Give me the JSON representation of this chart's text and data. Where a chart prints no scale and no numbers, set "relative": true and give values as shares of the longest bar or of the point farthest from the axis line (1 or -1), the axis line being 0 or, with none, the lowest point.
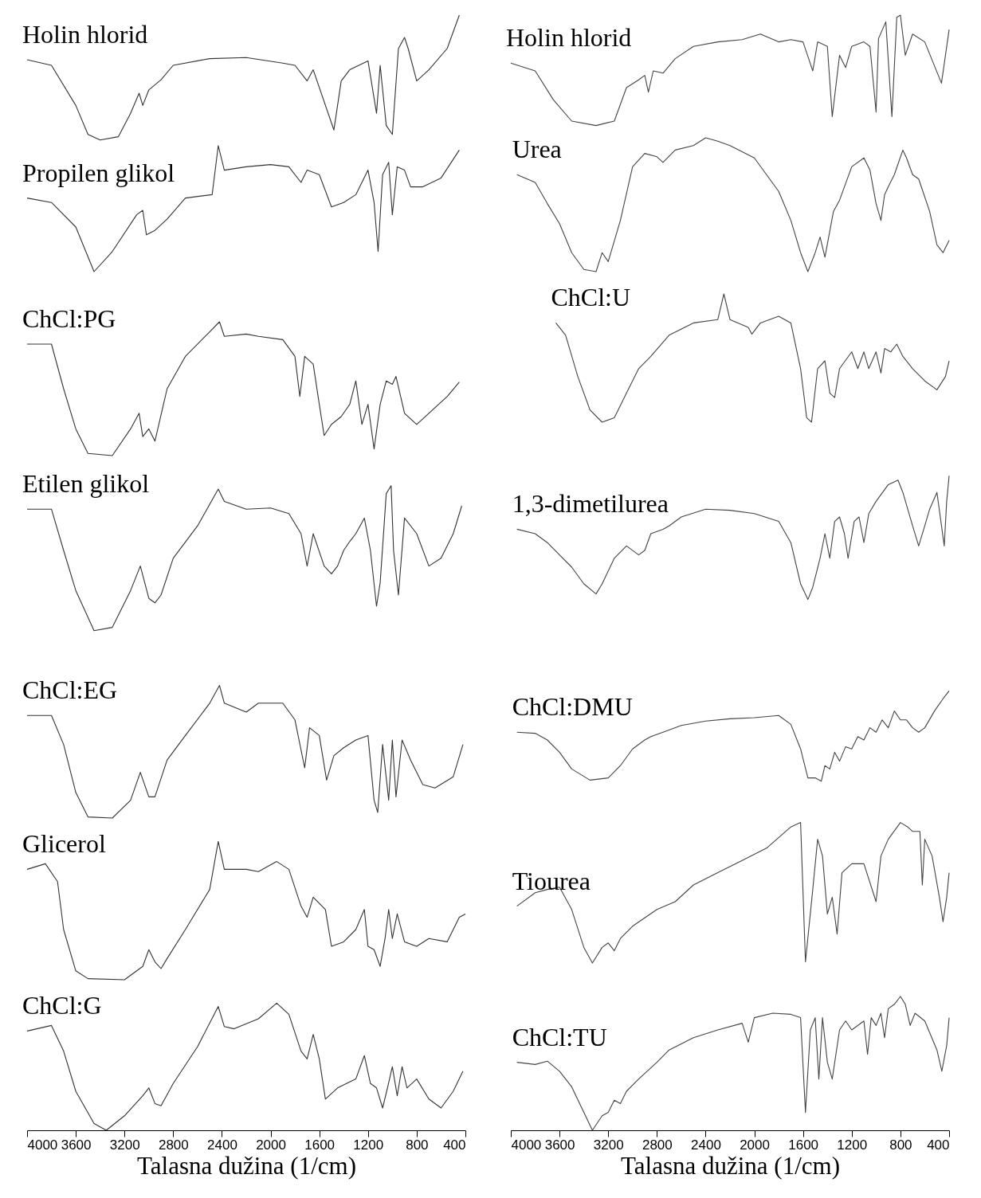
{
  "chart_data": [
    {
      "type": "line",
      "relative": true,
      "xlabel": "Talasna dužina (1/cm)",
      "xlim": [
        4000,
        400
      ],
      "xticks": [
        4000,
        3600,
        3200,
        2800,
        2400,
        2000,
        1600,
        1200,
        800,
        400
      ],
      "tick_labels": "x",
      "series": [
        {
          "name": "Holin hlorid",
          "color": "#333333",
          "x": [
            4000,
            3800,
            3600,
            3500,
            3400,
            3250,
            3150,
            3080,
            3050,
            3000,
            2900,
            2800,
            2500,
            2200,
            1900,
            1800,
            1700,
            1650,
            1480,
            1420,
            1350,
            1200,
            1130,
            1100,
            1050,
            1000,
            950,
            900,
            870,
            800,
            700,
            550,
            450
          ],
          "values": [
            0.96,
            0.955,
            0.919,
            0.893,
            0.888,
            0.891,
            0.912,
            0.93,
            0.919,
            0.933,
            0.942,
            0.955,
            0.961,
            0.962,
            0.957,
            0.955,
            0.941,
            0.951,
            0.897,
            0.941,
            0.951,
            0.959,
            0.912,
            0.955,
            0.901,
            0.893,
            0.97,
            0.98,
            0.97,
            0.941,
            0.951,
            0.97,
            1.0
          ]
        },
        {
          "name": "Propilen glikol",
          "color": "#333333",
          "x": [
            4000,
            3800,
            3600,
            3450,
            3300,
            3100,
            3050,
            3020,
            2950,
            2850,
            2700,
            2480,
            2430,
            2380,
            2200,
            2000,
            1850,
            1750,
            1700,
            1600,
            1500,
            1400,
            1300,
            1200,
            1150,
            1117,
            1080,
            1030,
            1000,
            960,
            900,
            850,
            750,
            600,
            450
          ],
          "values": [
            0.836,
            0.832,
            0.81,
            0.77,
            0.788,
            0.821,
            0.825,
            0.803,
            0.807,
            0.817,
            0.836,
            0.839,
            0.883,
            0.861,
            0.864,
            0.866,
            0.864,
            0.85,
            0.861,
            0.857,
            0.828,
            0.832,
            0.839,
            0.861,
            0.832,
            0.788,
            0.857,
            0.868,
            0.821,
            0.864,
            0.861,
            0.846,
            0.846,
            0.854,
            0.879
          ]
        },
        {
          "name": "ChCl:PG",
          "color": "#333333",
          "x": [
            4000,
            3800,
            3700,
            3600,
            3500,
            3300,
            3150,
            3080,
            3050,
            3000,
            2950,
            2850,
            2700,
            2500,
            2420,
            2380,
            2200,
            2100,
            1900,
            1800,
            1760,
            1720,
            1650,
            1600,
            1560,
            1500,
            1420,
            1350,
            1300,
            1250,
            1200,
            1150,
            1100,
            1050,
            1000,
            970,
            900,
            800,
            700,
            550,
            450
          ],
          "values": [
            0.705,
            0.705,
            0.665,
            0.629,
            0.607,
            0.605,
            0.629,
            0.643,
            0.622,
            0.629,
            0.618,
            0.665,
            0.694,
            0.716,
            0.725,
            0.712,
            0.714,
            0.712,
            0.709,
            0.694,
            0.658,
            0.694,
            0.687,
            0.651,
            0.623,
            0.633,
            0.64,
            0.651,
            0.672,
            0.633,
            0.651,
            0.611,
            0.651,
            0.672,
            0.669,
            0.676,
            0.643,
            0.633,
            0.643,
            0.658,
            0.671
          ]
        },
        {
          "name": "Etilen glikol",
          "color": "#333333",
          "x": [
            4000,
            3800,
            3700,
            3600,
            3450,
            3300,
            3150,
            3070,
            3000,
            2950,
            2900,
            2800,
            2600,
            2430,
            2380,
            2200,
            2000,
            1850,
            1750,
            1700,
            1650,
            1560,
            1500,
            1450,
            1400,
            1350,
            1300,
            1230,
            1180,
            1130,
            1100,
            1050,
            1010,
            990,
            950,
            900,
            800,
            700,
            600,
            500,
            430
          ],
          "values": [
            0.557,
            0.557,
            0.52,
            0.484,
            0.448,
            0.451,
            0.484,
            0.506,
            0.477,
            0.473,
            0.48,
            0.513,
            0.542,
            0.575,
            0.564,
            0.557,
            0.558,
            0.553,
            0.535,
            0.506,
            0.535,
            0.506,
            0.499,
            0.506,
            0.52,
            0.528,
            0.535,
            0.549,
            0.52,
            0.47,
            0.491,
            0.571,
            0.578,
            0.52,
            0.48,
            0.549,
            0.535,
            0.506,
            0.513,
            0.535,
            0.56
          ]
        },
        {
          "name": "ChCl:EG",
          "color": "#333333",
          "x": [
            4000,
            3800,
            3700,
            3600,
            3500,
            3300,
            3150,
            3070,
            3000,
            2950,
            2850,
            2700,
            2500,
            2420,
            2380,
            2200,
            2100,
            1900,
            1800,
            1720,
            1680,
            1600,
            1540,
            1480,
            1400,
            1300,
            1200,
            1150,
            1120,
            1080,
            1030,
            1000,
            970,
            920,
            850,
            750,
            650,
            500,
            420
          ],
          "values": [
            0.372,
            0.372,
            0.346,
            0.303,
            0.281,
            0.28,
            0.296,
            0.321,
            0.299,
            0.299,
            0.332,
            0.354,
            0.383,
            0.399,
            0.383,
            0.375,
            0.383,
            0.383,
            0.368,
            0.325,
            0.361,
            0.354,
            0.314,
            0.336,
            0.343,
            0.35,
            0.354,
            0.296,
            0.285,
            0.346,
            0.296,
            0.35,
            0.299,
            0.35,
            0.332,
            0.31,
            0.307,
            0.317,
            0.346
          ]
        },
        {
          "name": "Glicerol",
          "color": "#333333",
          "x": [
            4000,
            3850,
            3750,
            3700,
            3600,
            3500,
            3200,
            3050,
            3000,
            2950,
            2900,
            2850,
            2700,
            2500,
            2430,
            2380,
            2200,
            2100,
            1950,
            1850,
            1750,
            1700,
            1650,
            1550,
            1500,
            1400,
            1300,
            1230,
            1200,
            1150,
            1100,
            1060,
            1030,
            1000,
            960,
            900,
            800,
            700,
            550,
            450,
            400
          ],
          "values": [
            0.234,
            0.239,
            0.223,
            0.18,
            0.143,
            0.136,
            0.135,
            0.147,
            0.162,
            0.151,
            0.145,
            0.154,
            0.18,
            0.216,
            0.259,
            0.234,
            0.234,
            0.232,
            0.241,
            0.234,
            0.201,
            0.191,
            0.209,
            0.198,
            0.165,
            0.169,
            0.18,
            0.198,
            0.165,
            0.162,
            0.147,
            0.172,
            0.198,
            0.172,
            0.194,
            0.169,
            0.165,
            0.172,
            0.169,
            0.191,
            0.194
          ]
        },
        {
          "name": "ChCl:G",
          "color": "#333333",
          "x": [
            4000,
            3800,
            3700,
            3600,
            3450,
            3350,
            3200,
            3050,
            3000,
            2950,
            2900,
            2800,
            2600,
            2430,
            2380,
            2300,
            2100,
            1950,
            1850,
            1750,
            1700,
            1650,
            1600,
            1550,
            1450,
            1300,
            1230,
            1180,
            1130,
            1080,
            1040,
            1000,
            960,
            920,
            880,
            800,
            700,
            600,
            500,
            420
          ],
          "values": [
            0.089,
            0.094,
            0.071,
            0.035,
            0.006,
            0.0,
            0.013,
            0.031,
            0.038,
            0.024,
            0.022,
            0.042,
            0.075,
            0.111,
            0.093,
            0.091,
            0.1,
            0.114,
            0.104,
            0.071,
            0.064,
            0.086,
            0.064,
            0.028,
            0.038,
            0.046,
            0.067,
            0.042,
            0.038,
            0.02,
            0.038,
            0.057,
            0.031,
            0.057,
            0.038,
            0.046,
            0.028,
            0.02,
            0.035,
            0.053
          ]
        }
      ]
    },
    {
      "type": "line",
      "relative": true,
      "xlabel": "Talasna dužina (1/cm)",
      "xlim": [
        4000,
        400
      ],
      "xticks": [
        4000,
        3600,
        3200,
        2800,
        2400,
        2000,
        1600,
        1200,
        800,
        400
      ],
      "tick_labels": "x",
      "series": [
        {
          "name": "Holin hlorid",
          "color": "#444444",
          "x": [
            4000,
            3800,
            3650,
            3500,
            3300,
            3150,
            3050,
            2950,
            2900,
            2870,
            2830,
            2750,
            2650,
            2500,
            2300,
            2100,
            1950,
            1800,
            1700,
            1600,
            1520,
            1480,
            1400,
            1360,
            1300,
            1250,
            1200,
            1100,
            1050,
            1000,
            980,
            920,
            870,
            830,
            800,
            760,
            700,
            600,
            463,
            430,
            400
          ],
          "values": [
            0.957,
            0.95,
            0.924,
            0.905,
            0.901,
            0.905,
            0.935,
            0.942,
            0.946,
            0.931,
            0.95,
            0.948,
            0.961,
            0.972,
            0.976,
            0.978,
            0.983,
            0.976,
            0.978,
            0.976,
            0.95,
            0.976,
            0.972,
            0.909,
            0.964,
            0.953,
            0.972,
            0.976,
            0.972,
            0.913,
            0.979,
            0.994,
            0.909,
            0.998,
            1.0,
            0.964,
            0.983,
            0.976,
            0.939,
            0.964,
            0.987
          ]
        },
        {
          "name": "Urea",
          "color": "#444444",
          "x": [
            3950,
            3800,
            3700,
            3600,
            3500,
            3400,
            3300,
            3250,
            3200,
            3100,
            3000,
            2900,
            2800,
            2750,
            2650,
            2500,
            2400,
            2300,
            2200,
            2000,
            1800,
            1700,
            1620,
            1560,
            1500,
            1460,
            1420,
            1350,
            1300,
            1200,
            1100,
            1050,
            1000,
            960,
            930,
            900,
            850,
            780,
            750,
            700,
            650,
            560,
            500,
            450,
            400
          ],
          "values": [
            0.857,
            0.85,
            0.831,
            0.813,
            0.787,
            0.772,
            0.77,
            0.787,
            0.779,
            0.816,
            0.864,
            0.876,
            0.873,
            0.868,
            0.879,
            0.883,
            0.89,
            0.887,
            0.883,
            0.872,
            0.842,
            0.816,
            0.787,
            0.77,
            0.787,
            0.801,
            0.783,
            0.824,
            0.834,
            0.864,
            0.872,
            0.861,
            0.831,
            0.816,
            0.839,
            0.846,
            0.857,
            0.879,
            0.872,
            0.857,
            0.853,
            0.824,
            0.794,
            0.787,
            0.798
          ]
        },
        {
          "name": "ChCl:U",
          "color": "#444444",
          "x": [
            3630,
            3550,
            3450,
            3350,
            3250,
            3150,
            3050,
            2950,
            2850,
            2700,
            2500,
            2300,
            2250,
            2200,
            2050,
            2020,
            1950,
            1800,
            1700,
            1620,
            1570,
            1530,
            1480,
            1420,
            1380,
            1340,
            1300,
            1200,
            1150,
            1100,
            1060,
            1000,
            960,
            930,
            880,
            830,
            780,
            700,
            600,
            500,
            430,
            400
          ],
          "values": [
            0.724,
            0.713,
            0.676,
            0.646,
            0.635,
            0.639,
            0.661,
            0.683,
            0.694,
            0.713,
            0.724,
            0.727,
            0.75,
            0.727,
            0.72,
            0.714,
            0.724,
            0.73,
            0.724,
            0.683,
            0.639,
            0.635,
            0.683,
            0.69,
            0.661,
            0.657,
            0.683,
            0.698,
            0.683,
            0.698,
            0.683,
            0.698,
            0.679,
            0.701,
            0.698,
            0.705,
            0.694,
            0.683,
            0.672,
            0.664,
            0.676,
            0.69
          ]
        },
        {
          "name": "1,3-dimetilurea",
          "color": "#444444",
          "x": [
            3950,
            3800,
            3700,
            3600,
            3500,
            3400,
            3300,
            3250,
            3150,
            3050,
            2950,
            2900,
            2850,
            2750,
            2700,
            2600,
            2400,
            2200,
            2000,
            1800,
            1700,
            1620,
            1560,
            1520,
            1460,
            1420,
            1380,
            1340,
            1300,
            1260,
            1230,
            1180,
            1140,
            1100,
            1060,
            1000,
            900,
            820,
            780,
            700,
            650,
            600,
            560,
            500,
            440,
            420,
            400
          ],
          "values": [
            0.539,
            0.535,
            0.527,
            0.516,
            0.505,
            0.49,
            0.481,
            0.49,
            0.513,
            0.524,
            0.516,
            0.52,
            0.535,
            0.539,
            0.542,
            0.55,
            0.557,
            0.556,
            0.553,
            0.546,
            0.527,
            0.49,
            0.476,
            0.487,
            0.513,
            0.535,
            0.513,
            0.546,
            0.55,
            0.535,
            0.513,
            0.546,
            0.55,
            0.527,
            0.553,
            0.564,
            0.579,
            0.583,
            0.572,
            0.542,
            0.524,
            0.542,
            0.557,
            0.572,
            0.524,
            0.564,
            0.587
          ]
        },
        {
          "name": "ChCl:DMU",
          "color": "#444444",
          "x": [
            3950,
            3800,
            3700,
            3600,
            3500,
            3350,
            3200,
            3100,
            3000,
            2900,
            2850,
            2750,
            2600,
            2400,
            2200,
            2000,
            1800,
            1700,
            1620,
            1560,
            1500,
            1450,
            1420,
            1380,
            1340,
            1300,
            1250,
            1200,
            1150,
            1100,
            1050,
            1000,
            950,
            900,
            850,
            800,
            750,
            700,
            650,
            600,
            520,
            450,
            400
          ],
          "values": [
            0.357,
            0.356,
            0.35,
            0.339,
            0.324,
            0.314,
            0.316,
            0.327,
            0.342,
            0.35,
            0.353,
            0.357,
            0.363,
            0.367,
            0.369,
            0.37,
            0.372,
            0.364,
            0.342,
            0.316,
            0.316,
            0.313,
            0.327,
            0.324,
            0.339,
            0.331,
            0.344,
            0.342,
            0.353,
            0.35,
            0.361,
            0.357,
            0.368,
            0.361,
            0.376,
            0.368,
            0.368,
            0.361,
            0.357,
            0.361,
            0.376,
            0.387,
            0.394
          ]
        },
        {
          "name": "Tiourea",
          "color": "#444444",
          "x": [
            3950,
            3800,
            3700,
            3600,
            3500,
            3400,
            3330,
            3250,
            3200,
            3150,
            3100,
            3000,
            2800,
            2650,
            2500,
            2300,
            2100,
            1900,
            1700,
            1620,
            1580,
            1520,
            1480,
            1440,
            1400,
            1360,
            1320,
            1280,
            1200,
            1100,
            1000,
            960,
            900,
            800,
            740,
            700,
            640,
            620,
            600,
            540,
            480,
            450,
            420,
            400
          ],
          "values": [
            0.201,
            0.213,
            0.216,
            0.218,
            0.198,
            0.164,
            0.15,
            0.164,
            0.168,
            0.161,
            0.172,
            0.183,
            0.198,
            0.205,
            0.22,
            0.231,
            0.242,
            0.253,
            0.272,
            0.276,
            0.151,
            0.216,
            0.261,
            0.246,
            0.194,
            0.209,
            0.176,
            0.231,
            0.239,
            0.239,
            0.205,
            0.246,
            0.261,
            0.276,
            0.272,
            0.268,
            0.268,
            0.22,
            0.261,
            0.246,
            0.209,
            0.187,
            0.209,
            0.231
          ]
        },
        {
          "name": "ChCl:TU",
          "color": "#444444",
          "x": [
            3950,
            3800,
            3700,
            3600,
            3500,
            3400,
            3330,
            3250,
            3200,
            3150,
            3100,
            3050,
            2950,
            2800,
            2700,
            2500,
            2300,
            2100,
            2050,
            2000,
            1850,
            1700,
            1620,
            1580,
            1540,
            1500,
            1470,
            1440,
            1400,
            1360,
            1300,
            1250,
            1200,
            1100,
            1070,
            1040,
            1000,
            960,
            930,
            900,
            850,
            800,
            760,
            720,
            680,
            600,
            500,
            460,
            420,
            400
          ],
          "values": [
            0.061,
            0.059,
            0.062,
            0.053,
            0.039,
            0.016,
            0.0,
            0.013,
            0.016,
            0.027,
            0.024,
            0.035,
            0.046,
            0.061,
            0.072,
            0.083,
            0.09,
            0.096,
            0.079,
            0.101,
            0.105,
            0.104,
            0.101,
            0.016,
            0.09,
            0.101,
            0.046,
            0.101,
            0.061,
            0.046,
            0.09,
            0.098,
            0.09,
            0.098,
            0.068,
            0.101,
            0.094,
            0.105,
            0.083,
            0.109,
            0.113,
            0.12,
            0.113,
            0.094,
            0.105,
            0.098,
            0.072,
            0.053,
            0.076,
            0.101
          ]
        }
      ]
    }
  ]
}
